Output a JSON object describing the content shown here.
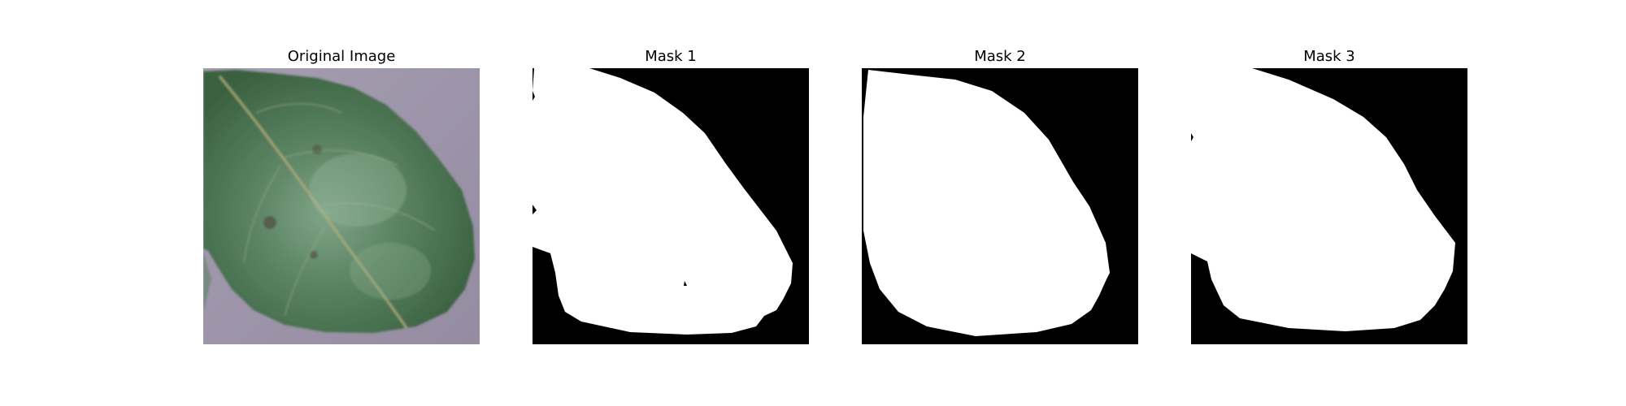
{
  "figure": {
    "panels": [
      {
        "title": "Original Image",
        "content": "leaf photograph"
      },
      {
        "title": "Mask 1",
        "content": "binary segmentation mask"
      },
      {
        "title": "Mask 2",
        "content": "binary segmentation mask"
      },
      {
        "title": "Mask 3",
        "content": "binary segmentation mask"
      }
    ],
    "colors": {
      "background": "#9d95a8",
      "leaf_dark": "#3c6642",
      "leaf_light": "#7fa387",
      "vein": "#b8b07a",
      "mask_foreground": "#ffffff",
      "mask_background": "#000000"
    }
  }
}
